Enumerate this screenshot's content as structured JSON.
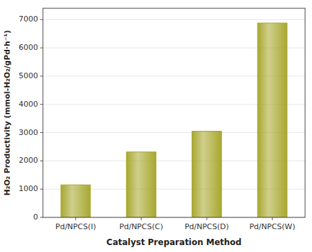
{
  "chart_data": {
    "type": "bar",
    "categories": [
      "Pd/NPCS(I)",
      "Pd/NPCS(C)",
      "Pd/NPCS(D)",
      "Pd/NPCS(W)"
    ],
    "values": [
      1150,
      2320,
      3050,
      6880
    ],
    "color": "#a8a830",
    "xlabel": "Catalyst Preparation Method",
    "ylabel": "H₂O₂ Productivity (mmol-H₂O₂/gPd·h⁻¹)",
    "ylim": [
      0,
      7400
    ],
    "yticks": [
      0,
      1000,
      2000,
      3000,
      4000,
      5000,
      6000,
      7000
    ]
  }
}
